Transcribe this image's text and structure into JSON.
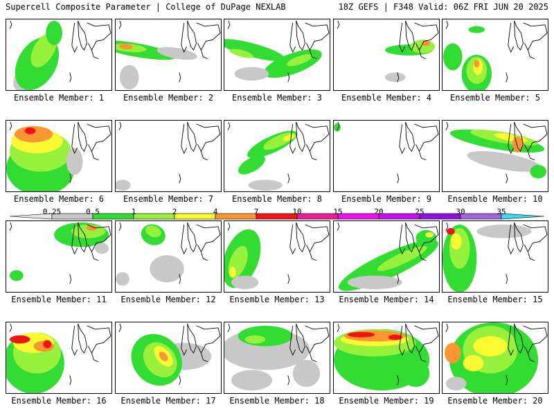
{
  "header": {
    "title": "Supercell Composite Parameter | College of DuPage NEXLAB",
    "valid": "18Z GEFS | F348 Valid: 06Z FRI JUN 20 2025"
  },
  "label_prefix": "Ensemble Member: ",
  "members": [
    1,
    2,
    3,
    4,
    5,
    6,
    7,
    8,
    9,
    10,
    11,
    12,
    13,
    14,
    15,
    16,
    17,
    18,
    19,
    20
  ],
  "colorbar": {
    "ticks": [
      "0.25",
      "0.5",
      "1",
      "2",
      "4",
      "7",
      "10",
      "15",
      "20",
      "25",
      "30",
      "35"
    ],
    "colors": [
      "#c8c8c8",
      "#32dc32",
      "#96f03c",
      "#fafa32",
      "#fa9632",
      "#f01414",
      "#f01e96",
      "#f00ff0",
      "#c80ff0",
      "#8c14dc",
      "#a064dc",
      "#3cdcf0"
    ]
  }
}
